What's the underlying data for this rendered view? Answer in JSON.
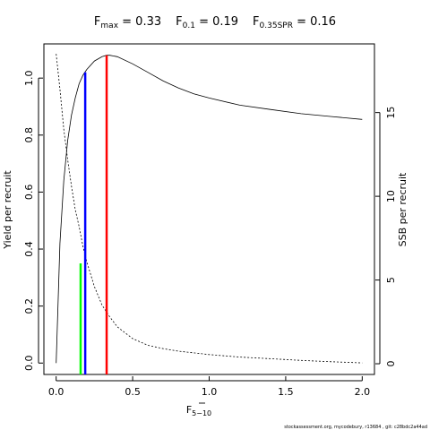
{
  "title": {
    "fmax_sym": "F",
    "fmax_sub": "max",
    "fmax_val": " = 0.33",
    "f01_sym": "F",
    "f01_sub": "0.1",
    "f01_val": " = 0.19",
    "fspr_sym": "F",
    "fspr_sub": "0.35SPR",
    "fspr_val": " = 0.16"
  },
  "footer": "stockassessment.org, mycodebury, r13684 , git: c28bdc2a44ad",
  "chart_data": {
    "type": "line",
    "xlabel": {
      "base": "F",
      "sub": "5−10"
    },
    "ylabel_left": "Yield per recruit",
    "ylabel_right": "SSB per recruit",
    "xlim": [
      -0.08,
      2.08
    ],
    "ylim_left": [
      -0.04,
      1.12
    ],
    "ylim_right": [
      -0.64,
      19.1
    ],
    "x_ticks": [
      0.0,
      0.5,
      1.0,
      1.5,
      2.0
    ],
    "x_tick_labels": [
      "0.0",
      "0.5",
      "1.0",
      "1.5",
      "2.0"
    ],
    "y_left_ticks": [
      0.0,
      0.2,
      0.4,
      0.6,
      0.8,
      1.0
    ],
    "y_left_tick_labels": [
      "0.0",
      "0.2",
      "0.4",
      "0.6",
      "0.8",
      "1.0"
    ],
    "y_right_ticks": [
      0,
      5,
      10,
      15
    ],
    "y_right_tick_labels": [
      "0",
      "5",
      "10",
      "15"
    ],
    "series": [
      {
        "role": "yield",
        "axis": "left",
        "color": "#000000",
        "dash": "none",
        "x": [
          0.0,
          0.025,
          0.05,
          0.075,
          0.1,
          0.125,
          0.15,
          0.175,
          0.2,
          0.25,
          0.3,
          0.33,
          0.35,
          0.4,
          0.5,
          0.6,
          0.7,
          0.8,
          0.9,
          1.0,
          1.2,
          1.4,
          1.6,
          1.8,
          2.0
        ],
        "y": [
          0.0,
          0.42,
          0.64,
          0.78,
          0.87,
          0.93,
          0.98,
          1.01,
          1.03,
          1.06,
          1.075,
          1.08,
          1.08,
          1.075,
          1.05,
          1.02,
          0.99,
          0.965,
          0.945,
          0.93,
          0.905,
          0.89,
          0.875,
          0.865,
          0.855
        ]
      },
      {
        "role": "ssb",
        "axis": "right",
        "color": "#000000",
        "dash": "2,2",
        "x": [
          0.0,
          0.025,
          0.05,
          0.075,
          0.1,
          0.125,
          0.15,
          0.175,
          0.2,
          0.25,
          0.3,
          0.35,
          0.4,
          0.5,
          0.6,
          0.7,
          0.8,
          1.0,
          1.2,
          1.4,
          1.6,
          1.8,
          2.0
        ],
        "y": [
          18.5,
          16.4,
          14.0,
          12.2,
          10.6,
          9.2,
          8.2,
          7.0,
          6.1,
          4.6,
          3.5,
          2.8,
          2.2,
          1.5,
          1.1,
          0.9,
          0.75,
          0.55,
          0.4,
          0.3,
          0.2,
          0.12,
          0.05
        ]
      }
    ],
    "reference_lines": [
      {
        "role": "fmax",
        "x": 0.33,
        "y_to": 1.08,
        "color": "#ff0000"
      },
      {
        "role": "f01",
        "x": 0.19,
        "y_to": 1.02,
        "color": "#0000ff"
      },
      {
        "role": "f035spr",
        "x": 0.16,
        "y_to": 0.35,
        "color": "#00ff00"
      }
    ]
  }
}
